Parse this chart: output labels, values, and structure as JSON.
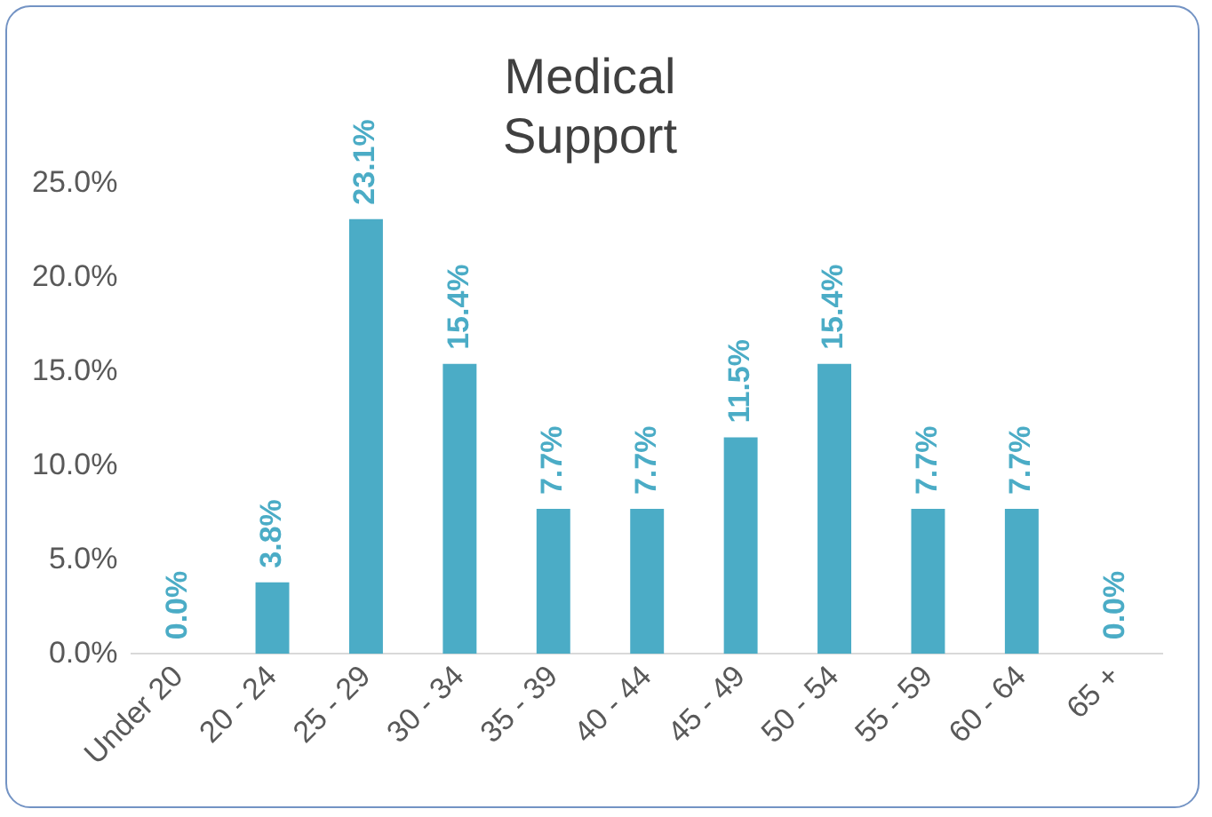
{
  "chart_data": {
    "type": "bar",
    "title": "Medical Support",
    "categories": [
      "Under 20",
      "20 - 24",
      "25 - 29",
      "30 - 34",
      "35 - 39",
      "40 - 44",
      "45 - 49",
      "50 - 54",
      "55 - 59",
      "60 - 64",
      "65 +"
    ],
    "values": [
      0,
      3.8,
      23.1,
      15.4,
      7.7,
      7.7,
      11.5,
      15.4,
      7.7,
      7.7,
      0
    ],
    "value_labels": [
      "0.0%",
      "3.8%",
      "23.1%",
      "15.4%",
      "7.7%",
      "7.7%",
      "11.5%",
      "15.4%",
      "7.7%",
      "7.7%",
      "0.0%"
    ],
    "color": "#4bacc6",
    "ylim": [
      0,
      25
    ],
    "yticks": [
      {
        "value": 0,
        "label": "0.0%"
      },
      {
        "value": 5,
        "label": "5.0%"
      },
      {
        "value": 10,
        "label": "10.0%"
      },
      {
        "value": 15,
        "label": "15.0%"
      },
      {
        "value": 20,
        "label": "20.0%"
      },
      {
        "value": 25,
        "label": "25.0%"
      }
    ],
    "grid": false,
    "legend": false
  }
}
